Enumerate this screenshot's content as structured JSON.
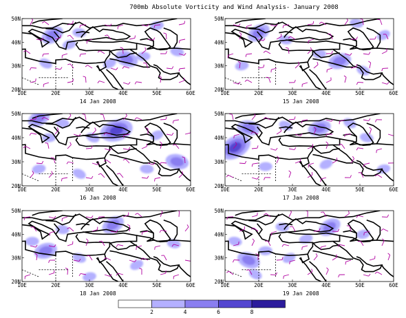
{
  "title": "700mb Absolute Vorticity and Wind Analysis- January 2008",
  "lat_labels": [
    "20N",
    "30N",
    "40N",
    "50N"
  ],
  "lon_labels": [
    "10E",
    "20E",
    "30E",
    "40E",
    "50E",
    "60E"
  ],
  "panels": [
    {
      "date": "14 Jan 2008",
      "blobs": [
        {
          "lon": 19,
          "lat": 43,
          "lvl": 2
        },
        {
          "lon": 27,
          "lat": 44,
          "lvl": 1
        },
        {
          "lon": 24,
          "lat": 39,
          "lvl": 1
        },
        {
          "lon": 41,
          "lat": 33,
          "lvl": 2
        },
        {
          "lon": 46,
          "lat": 34,
          "lvl": 1
        },
        {
          "lon": 36,
          "lat": 31,
          "lvl": 1
        },
        {
          "lon": 56,
          "lat": 36,
          "lvl": 1
        },
        {
          "lon": 50,
          "lat": 47,
          "lvl": 1
        },
        {
          "lon": 17,
          "lat": 31,
          "lvl": 1
        }
      ]
    },
    {
      "date": "15 Jan 2008",
      "blobs": [
        {
          "lon": 20,
          "lat": 44,
          "lvl": 2
        },
        {
          "lon": 28,
          "lat": 41,
          "lvl": 1
        },
        {
          "lon": 44,
          "lat": 32,
          "lvl": 2
        },
        {
          "lon": 51,
          "lat": 28,
          "lvl": 1
        },
        {
          "lon": 38,
          "lat": 35,
          "lvl": 1
        },
        {
          "lon": 57,
          "lat": 43,
          "lvl": 1
        },
        {
          "lon": 49,
          "lat": 48,
          "lvl": 1
        },
        {
          "lon": 15,
          "lat": 30,
          "lvl": 1
        }
      ]
    },
    {
      "date": "16 Jan 2008",
      "blobs": [
        {
          "lon": 15,
          "lat": 48,
          "lvl": 2
        },
        {
          "lon": 22,
          "lat": 46,
          "lvl": 1
        },
        {
          "lon": 38,
          "lat": 43,
          "lvl": 3
        },
        {
          "lon": 31,
          "lat": 40,
          "lvl": 1
        },
        {
          "lon": 18,
          "lat": 40,
          "lvl": 1
        },
        {
          "lon": 50,
          "lat": 41,
          "lvl": 1
        },
        {
          "lon": 56,
          "lat": 30,
          "lvl": 2
        },
        {
          "lon": 15,
          "lat": 27,
          "lvl": 1
        },
        {
          "lon": 27,
          "lat": 25,
          "lvl": 1
        },
        {
          "lon": 47,
          "lat": 27,
          "lvl": 1
        }
      ]
    },
    {
      "date": "17 Jan 2008",
      "blobs": [
        {
          "lon": 13,
          "lat": 36,
          "lvl": 3
        },
        {
          "lon": 17,
          "lat": 44,
          "lvl": 2
        },
        {
          "lon": 38,
          "lat": 44,
          "lvl": 2
        },
        {
          "lon": 28,
          "lat": 45,
          "lvl": 1
        },
        {
          "lon": 22,
          "lat": 28,
          "lvl": 1
        },
        {
          "lon": 40,
          "lat": 29,
          "lvl": 1
        },
        {
          "lon": 52,
          "lat": 40,
          "lvl": 1
        },
        {
          "lon": 57,
          "lat": 27,
          "lvl": 1
        },
        {
          "lon": 47,
          "lat": 46,
          "lvl": 1
        }
      ]
    },
    {
      "date": "18 Jan 2008",
      "blobs": [
        {
          "lon": 37,
          "lat": 44,
          "lvl": 2
        },
        {
          "lon": 22,
          "lat": 42,
          "lvl": 1
        },
        {
          "lon": 17,
          "lat": 33,
          "lvl": 2
        },
        {
          "lon": 27,
          "lat": 30,
          "lvl": 1
        },
        {
          "lon": 13,
          "lat": 37,
          "lvl": 1
        },
        {
          "lon": 44,
          "lat": 27,
          "lvl": 1
        },
        {
          "lon": 55,
          "lat": 36,
          "lvl": 1
        },
        {
          "lon": 30,
          "lat": 22,
          "lvl": 1
        }
      ]
    },
    {
      "date": "19 Jan 2008",
      "blobs": [
        {
          "lon": 41,
          "lat": 43,
          "lvl": 2
        },
        {
          "lon": 27,
          "lat": 43,
          "lvl": 1
        },
        {
          "lon": 34,
          "lat": 38,
          "lvl": 1
        },
        {
          "lon": 17,
          "lat": 29,
          "lvl": 2
        },
        {
          "lon": 22,
          "lat": 33,
          "lvl": 1
        },
        {
          "lon": 29,
          "lat": 30,
          "lvl": 1
        },
        {
          "lon": 13,
          "lat": 37,
          "lvl": 1
        },
        {
          "lon": 51,
          "lat": 40,
          "lvl": 1
        },
        {
          "lon": 19,
          "lat": 23,
          "lvl": 1
        }
      ]
    }
  ],
  "legend": {
    "labels": [
      "2",
      "4",
      "6",
      "8"
    ]
  },
  "colors": {
    "shade1": "#b4b0ff",
    "shade2": "#8a7ef0",
    "shade3": "#5446d0",
    "shade4": "#2c1c9c",
    "coast": "#000000",
    "wind": "#b000a0"
  }
}
